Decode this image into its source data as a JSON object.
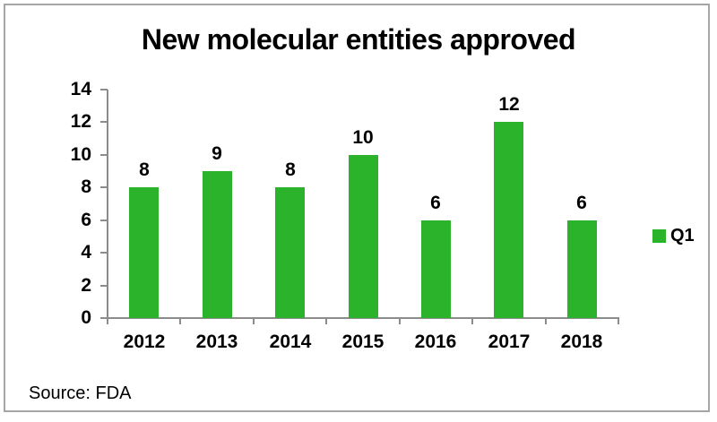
{
  "window": {
    "background": "#ffffff",
    "frame_border_color": "#a6a6a6"
  },
  "chart_data": {
    "type": "bar",
    "title": "New molecular entities approved",
    "categories": [
      "2012",
      "2013",
      "2014",
      "2015",
      "2016",
      "2017",
      "2018"
    ],
    "series": [
      {
        "name": "Q1",
        "values": [
          8,
          9,
          8,
          10,
          6,
          12,
          6
        ]
      }
    ],
    "xlabel": "",
    "ylabel": "",
    "ylim": [
      0,
      14
    ],
    "yticks": [
      0,
      2,
      4,
      6,
      8,
      10,
      12,
      14
    ],
    "grid": false,
    "data_labels": true,
    "legend_position": "right",
    "bar_color": "#2bb32b",
    "axis_color": "#8c8c8c",
    "text_color": "#000000"
  },
  "source": {
    "text": "Source: FDA"
  }
}
